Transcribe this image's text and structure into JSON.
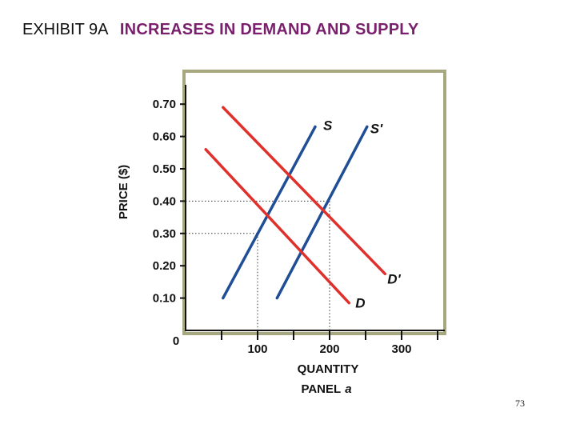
{
  "header": {
    "exhibit": "EXHIBIT 9A",
    "title": "INCREASES IN DEMAND AND SUPPLY"
  },
  "page_number": "73",
  "colors": {
    "title": "#7a1f6e",
    "supply": "#1f4e96",
    "demand": "#e0302b",
    "frame": "#a8a880",
    "guide": "#333333"
  },
  "chart_data": {
    "type": "line",
    "panel_label": "PANEL",
    "panel_letter": "a",
    "xlabel": "QUANTITY",
    "ylabel": "PRICE ($)",
    "xlim": [
      0,
      380
    ],
    "ylim": [
      0,
      0.75
    ],
    "x_ticks": [
      {
        "value": 0,
        "label": "0"
      },
      {
        "value": 100,
        "label": "100"
      },
      {
        "value": 200,
        "label": "200"
      },
      {
        "value": 300,
        "label": "300"
      }
    ],
    "y_ticks": [
      {
        "value": 0.1,
        "label": "0.10"
      },
      {
        "value": 0.2,
        "label": "0.20"
      },
      {
        "value": 0.3,
        "label": "0.30"
      },
      {
        "value": 0.4,
        "label": "0.40"
      },
      {
        "value": 0.5,
        "label": "0.50"
      },
      {
        "value": 0.6,
        "label": "0.60"
      },
      {
        "value": 0.7,
        "label": "0.70"
      }
    ],
    "minor_x_ticks": [
      50,
      150,
      250,
      350
    ],
    "series": [
      {
        "name": "S",
        "kind": "supply",
        "x": [
          52,
          180
        ],
        "y": [
          0.1,
          0.63
        ]
      },
      {
        "name": "S'",
        "kind": "supply",
        "x": [
          127,
          252
        ],
        "y": [
          0.1,
          0.63
        ]
      },
      {
        "name": "D",
        "kind": "demand",
        "x": [
          28,
          227
        ],
        "y": [
          0.56,
          0.085
        ]
      },
      {
        "name": "D'",
        "kind": "demand",
        "x": [
          52,
          277
        ],
        "y": [
          0.69,
          0.175
        ]
      }
    ],
    "equilibria": [
      {
        "x": 100,
        "y": 0.3
      },
      {
        "x": 200,
        "y": 0.4
      }
    ],
    "grid": false,
    "legend": "none"
  }
}
